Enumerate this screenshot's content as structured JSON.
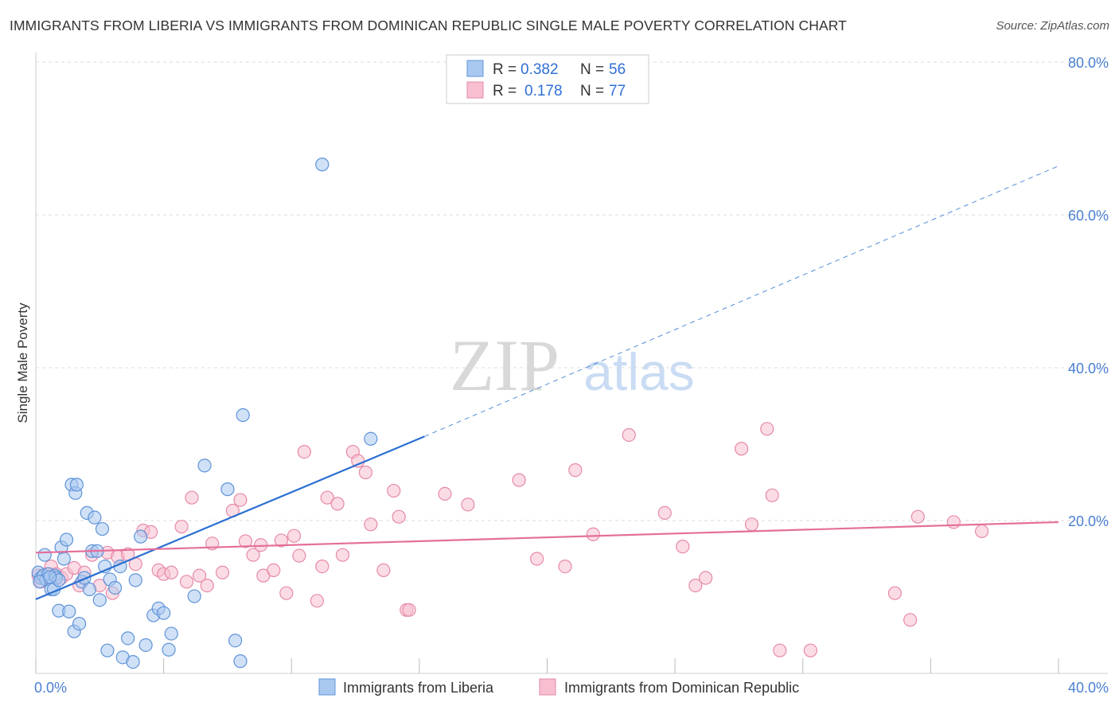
{
  "title": "IMMIGRANTS FROM LIBERIA VS IMMIGRANTS FROM DOMINICAN REPUBLIC SINGLE MALE POVERTY CORRELATION CHART",
  "source": "Source: ZipAtlas.com",
  "watermark": {
    "zip": "ZIP",
    "atlas": "atlas"
  },
  "colors": {
    "liberia_fill": "#a9c8f0",
    "liberia_stroke": "#5f93d8",
    "liberia_line": "#2b6fd1",
    "dr_fill": "#f7bfd0",
    "dr_stroke": "#e68aa8",
    "dr_line": "#e46f9a",
    "tick_text": "#4a7fd1"
  },
  "legend": {
    "row1": {
      "r_label": "R =",
      "r_value": "0.382",
      "n_label": "N =",
      "n_value": "56"
    },
    "row2": {
      "r_label": "R =",
      "r_value": "0.178",
      "n_label": "N =",
      "n_value": "77"
    }
  },
  "chart_data": {
    "type": "scatter",
    "title": "IMMIGRANTS FROM LIBERIA VS IMMIGRANTS FROM DOMINICAN REPUBLIC SINGLE MALE POVERTY CORRELATION CHART",
    "xlabel": "",
    "ylabel": "Single Male Poverty",
    "xlim": [
      0,
      40
    ],
    "ylim": [
      0,
      80
    ],
    "x_tick_labels": [
      "0.0%",
      "40.0%"
    ],
    "y_ticks": [
      20,
      40,
      60,
      80
    ],
    "y_tick_labels": [
      "20.0%",
      "40.0%",
      "60.0%",
      "80.0%"
    ],
    "grid": true,
    "legend_position": "top-center",
    "series": [
      {
        "name": "Immigrants from Liberia",
        "r": 0.382,
        "n": 56,
        "trend": {
          "x0": 0,
          "y0": 9.7,
          "x1": 15.2,
          "y1": 31.0,
          "dashed_to_x": 40,
          "dashed_to_y": 66.4
        },
        "points": [
          [
            0.1,
            13.2
          ],
          [
            0.2,
            12.5
          ],
          [
            0.3,
            12.8
          ],
          [
            0.35,
            15.5
          ],
          [
            0.4,
            12.3
          ],
          [
            0.5,
            13.0
          ],
          [
            0.6,
            11.0
          ],
          [
            0.7,
            11.0
          ],
          [
            0.75,
            12.8
          ],
          [
            0.8,
            12.5
          ],
          [
            0.9,
            12.2
          ],
          [
            0.9,
            8.2
          ],
          [
            1.0,
            16.5
          ],
          [
            1.1,
            15.0
          ],
          [
            1.2,
            17.5
          ],
          [
            1.3,
            8.1
          ],
          [
            1.4,
            24.7
          ],
          [
            1.5,
            5.5
          ],
          [
            1.55,
            23.6
          ],
          [
            1.6,
            24.7
          ],
          [
            1.7,
            6.5
          ],
          [
            1.8,
            12.0
          ],
          [
            1.9,
            12.5
          ],
          [
            2.0,
            21.0
          ],
          [
            2.1,
            11.0
          ],
          [
            2.2,
            16.0
          ],
          [
            2.3,
            20.4
          ],
          [
            2.4,
            16.0
          ],
          [
            2.5,
            9.6
          ],
          [
            2.6,
            18.9
          ],
          [
            2.7,
            14.0
          ],
          [
            2.8,
            3.0
          ],
          [
            2.9,
            12.3
          ],
          [
            3.1,
            11.2
          ],
          [
            3.3,
            14.0
          ],
          [
            3.4,
            2.1
          ],
          [
            3.6,
            4.6
          ],
          [
            3.8,
            1.5
          ],
          [
            3.9,
            12.2
          ],
          [
            4.1,
            17.9
          ],
          [
            4.3,
            3.7
          ],
          [
            4.6,
            7.6
          ],
          [
            4.8,
            8.5
          ],
          [
            5.0,
            7.9
          ],
          [
            5.2,
            3.1
          ],
          [
            5.3,
            5.2
          ],
          [
            6.2,
            10.1
          ],
          [
            6.6,
            27.2
          ],
          [
            7.5,
            24.1
          ],
          [
            7.8,
            4.3
          ],
          [
            8.0,
            1.6
          ],
          [
            8.1,
            33.8
          ],
          [
            11.2,
            66.6
          ],
          [
            13.1,
            30.7
          ],
          [
            0.15,
            12.0
          ],
          [
            0.55,
            12.6
          ]
        ]
      },
      {
        "name": "Immigrants from Dominican Republic",
        "r": 0.178,
        "n": 77,
        "trend": {
          "x0": 0,
          "y0": 15.8,
          "x1": 40,
          "y1": 19.8
        },
        "points": [
          [
            0.1,
            12.8
          ],
          [
            0.2,
            12.0
          ],
          [
            0.4,
            13.0
          ],
          [
            0.6,
            14.0
          ],
          [
            0.8,
            13.0
          ],
          [
            1.0,
            12.5
          ],
          [
            1.2,
            13.0
          ],
          [
            1.5,
            13.8
          ],
          [
            1.7,
            11.5
          ],
          [
            1.9,
            13.2
          ],
          [
            2.2,
            15.5
          ],
          [
            2.5,
            11.5
          ],
          [
            2.8,
            15.8
          ],
          [
            3.0,
            10.5
          ],
          [
            3.2,
            15.3
          ],
          [
            3.6,
            15.6
          ],
          [
            3.9,
            14.3
          ],
          [
            4.2,
            18.7
          ],
          [
            4.5,
            18.5
          ],
          [
            4.8,
            13.5
          ],
          [
            5.0,
            13.0
          ],
          [
            5.3,
            13.2
          ],
          [
            5.7,
            19.2
          ],
          [
            5.9,
            12.0
          ],
          [
            6.1,
            23.0
          ],
          [
            6.4,
            12.8
          ],
          [
            6.7,
            11.5
          ],
          [
            6.9,
            17.0
          ],
          [
            7.3,
            13.2
          ],
          [
            7.7,
            21.3
          ],
          [
            8.0,
            22.7
          ],
          [
            8.2,
            17.3
          ],
          [
            8.5,
            15.5
          ],
          [
            8.8,
            16.8
          ],
          [
            8.9,
            12.8
          ],
          [
            9.3,
            13.5
          ],
          [
            9.6,
            17.4
          ],
          [
            9.8,
            10.5
          ],
          [
            10.1,
            18.0
          ],
          [
            10.3,
            15.4
          ],
          [
            10.5,
            29.0
          ],
          [
            11.0,
            9.5
          ],
          [
            11.2,
            14.0
          ],
          [
            11.4,
            23.0
          ],
          [
            11.8,
            22.2
          ],
          [
            12.0,
            15.5
          ],
          [
            12.4,
            29.0
          ],
          [
            12.6,
            27.8
          ],
          [
            12.9,
            26.3
          ],
          [
            13.1,
            19.5
          ],
          [
            13.6,
            13.5
          ],
          [
            14.0,
            23.9
          ],
          [
            14.2,
            20.5
          ],
          [
            14.5,
            8.3
          ],
          [
            14.6,
            8.3
          ],
          [
            16.0,
            23.5
          ],
          [
            16.9,
            22.1
          ],
          [
            18.9,
            25.3
          ],
          [
            19.6,
            15.0
          ],
          [
            20.7,
            14.0
          ],
          [
            21.1,
            26.6
          ],
          [
            21.8,
            18.2
          ],
          [
            23.2,
            31.2
          ],
          [
            24.6,
            21.0
          ],
          [
            25.3,
            16.6
          ],
          [
            25.8,
            11.5
          ],
          [
            26.2,
            12.5
          ],
          [
            27.6,
            29.4
          ],
          [
            28.0,
            19.5
          ],
          [
            28.6,
            32.0
          ],
          [
            28.8,
            23.3
          ],
          [
            29.1,
            3.0
          ],
          [
            30.3,
            3.0
          ],
          [
            33.6,
            10.5
          ],
          [
            34.2,
            7.0
          ],
          [
            34.5,
            20.5
          ],
          [
            35.9,
            19.8
          ],
          [
            37.0,
            18.6
          ]
        ]
      }
    ]
  },
  "bottom_legend": {
    "item1": "Immigrants from Liberia",
    "item2": "Immigrants from Dominican Republic"
  }
}
